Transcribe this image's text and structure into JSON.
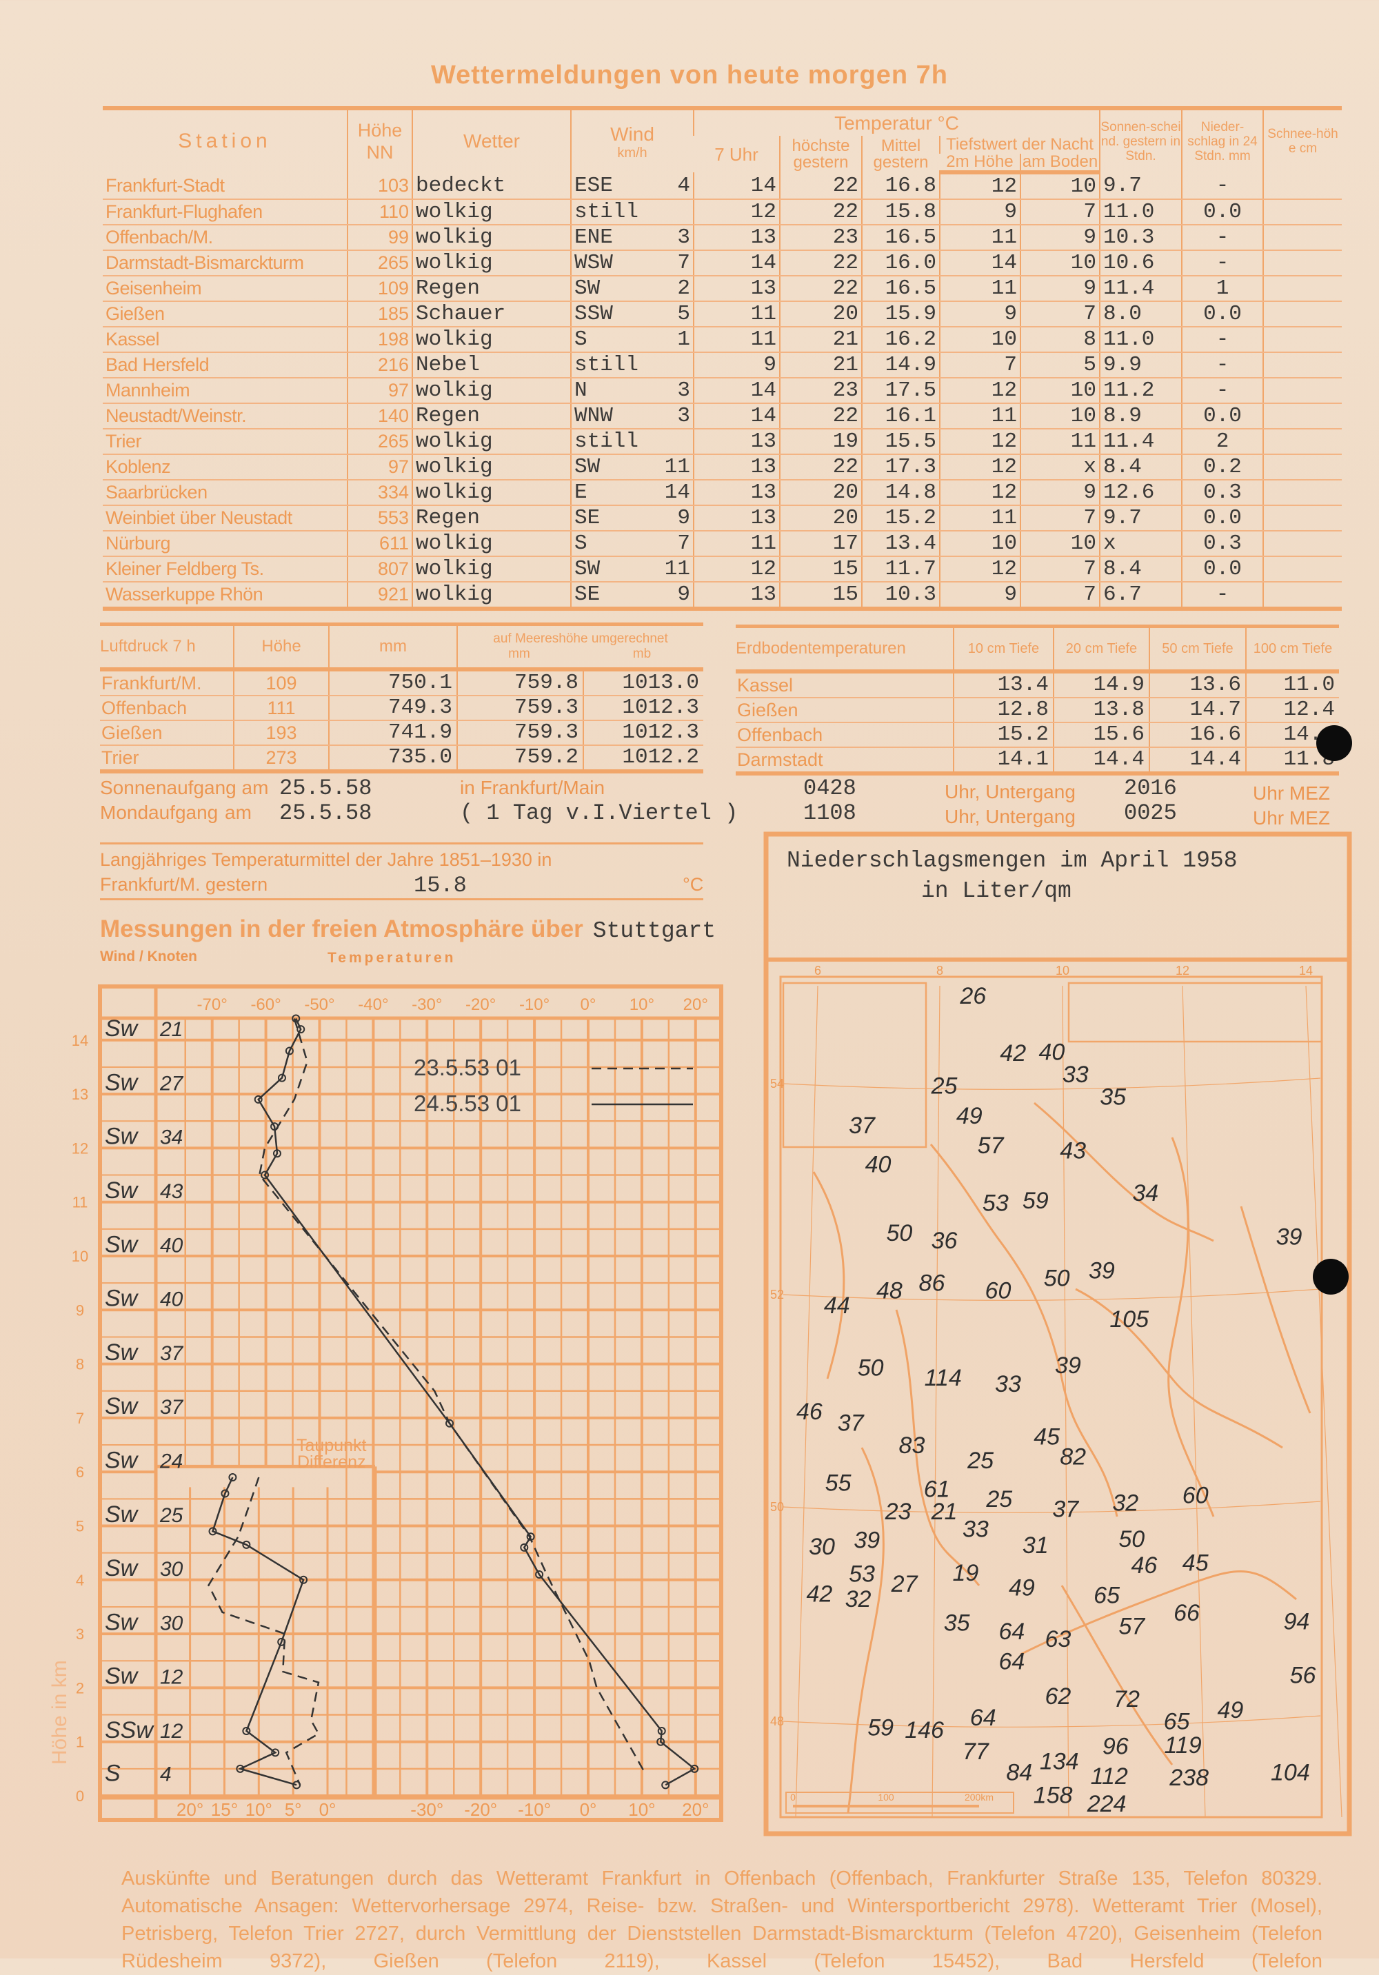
{
  "title": "Wettermeldungen von heute morgen 7h",
  "main_table": {
    "headers": {
      "station": "Station",
      "hoehe": "Höhe NN",
      "wetter": "Wetter",
      "wind": "Wind",
      "wind_unit": "km/h",
      "temperatur": "Temperatur °C",
      "t7": "7 Uhr",
      "tmax": "höchste gestern",
      "tmean": "Mittel gestern",
      "tmin": "Tiefstwert der Nacht",
      "tmin2m": "2m Höhe",
      "tminboden": "am Boden",
      "sonne": "Sonnen-scheind. gestern in Stdn.",
      "nieder": "Nieder-schlag in 24 Stdn. mm",
      "schnee": "Schnee-höhe cm"
    },
    "rows": [
      [
        "Frankfurt-Stadt",
        "103",
        "bedeckt",
        "ESE",
        "4",
        "14",
        "22",
        "16.8",
        "12",
        "10",
        "9.7",
        "-",
        ""
      ],
      [
        "Frankfurt-Flughafen",
        "110",
        "wolkig",
        "still",
        "",
        "12",
        "22",
        "15.8",
        "9",
        "7",
        "11.0",
        "0.0",
        ""
      ],
      [
        "Offenbach/M.",
        "99",
        "wolkig",
        "ENE",
        "3",
        "13",
        "23",
        "16.5",
        "11",
        "9",
        "10.3",
        "-",
        ""
      ],
      [
        "Darmstadt-Bismarckturm",
        "265",
        "wolkig",
        "WSW",
        "7",
        "14",
        "22",
        "16.0",
        "14",
        "10",
        "10.6",
        "-",
        ""
      ],
      [
        "Geisenheim",
        "109",
        "Regen",
        "SW",
        "2",
        "13",
        "22",
        "16.5",
        "11",
        "9",
        "11.4",
        "1",
        ""
      ],
      [
        "Gießen",
        "185",
        "Schauer",
        "SSW",
        "5",
        "11",
        "20",
        "15.9",
        "9",
        "7",
        "8.0",
        "0.0",
        ""
      ],
      [
        "Kassel",
        "198",
        "wolkig",
        "S",
        "1",
        "11",
        "21",
        "16.2",
        "10",
        "8",
        "11.0",
        "-",
        ""
      ],
      [
        "Bad Hersfeld",
        "216",
        "Nebel",
        "still",
        "",
        "9",
        "21",
        "14.9",
        "7",
        "5",
        "9.9",
        "-",
        ""
      ],
      [
        "Mannheim",
        "97",
        "wolkig",
        "N",
        "3",
        "14",
        "23",
        "17.5",
        "12",
        "10",
        "11.2",
        "-",
        ""
      ],
      [
        "Neustadt/Weinstr.",
        "140",
        "Regen",
        "WNW",
        "3",
        "14",
        "22",
        "16.1",
        "11",
        "10",
        "8.9",
        "0.0",
        ""
      ],
      [
        "Trier",
        "265",
        "wolkig",
        "still",
        "",
        "13",
        "19",
        "15.5",
        "12",
        "11",
        "11.4",
        "2",
        ""
      ],
      [
        "Koblenz",
        "97",
        "wolkig",
        "SW",
        "11",
        "13",
        "22",
        "17.3",
        "12",
        "x",
        "8.4",
        "0.2",
        ""
      ],
      [
        "Saarbrücken",
        "334",
        "wolkig",
        "E",
        "14",
        "13",
        "20",
        "14.8",
        "12",
        "9",
        "12.6",
        "0.3",
        ""
      ],
      [
        "Weinbiet über Neustadt",
        "553",
        "Regen",
        "SE",
        "9",
        "13",
        "20",
        "15.2",
        "11",
        "7",
        "9.7",
        "0.0",
        ""
      ],
      [
        "Nürburg",
        "611",
        "wolkig",
        "S",
        "7",
        "11",
        "17",
        "13.4",
        "10",
        "10",
        "x",
        "0.3",
        ""
      ],
      [
        "Kleiner Feldberg Ts.",
        "807",
        "wolkig",
        "SW",
        "11",
        "12",
        "15",
        "11.7",
        "12",
        "7",
        "8.4",
        "0.0",
        ""
      ],
      [
        "Wasserkuppe Rhön",
        "921",
        "wolkig",
        "SE",
        "9",
        "13",
        "15",
        "10.3",
        "9",
        "7",
        "6.7",
        "-",
        ""
      ]
    ]
  },
  "luftdruck": {
    "headers": {
      "station": "Luftdruck 7 h",
      "hoehe": "Höhe",
      "mm": "mm",
      "meer": "auf Meereshöhe umgerechnet",
      "meer_mm": "mm",
      "meer_mb": "mb"
    },
    "rows": [
      [
        "Frankfurt/M.",
        "109",
        "750.1",
        "759.8",
        "1013.0"
      ],
      [
        "Offenbach",
        "111",
        "749.3",
        "759.3",
        "1012.3"
      ],
      [
        "Gießen",
        "193",
        "741.9",
        "759.3",
        "1012.3"
      ],
      [
        "Trier",
        "273",
        "735.0",
        "759.2",
        "1012.2"
      ]
    ]
  },
  "erdboden": {
    "headers": [
      "Erdbodentemperaturen",
      "10 cm Tiefe",
      "20 cm Tiefe",
      "50 cm Tiefe",
      "100 cm Tiefe"
    ],
    "rows": [
      [
        "Kassel",
        "13.4",
        "14.9",
        "13.6",
        "11.0"
      ],
      [
        "Gießen",
        "12.8",
        "13.8",
        "14.7",
        "12.4"
      ],
      [
        "Offenbach",
        "15.2",
        "15.6",
        "16.6",
        "14.4"
      ],
      [
        "Darmstadt",
        "14.1",
        "14.4",
        "14.4",
        "11.8"
      ]
    ]
  },
  "sun_moon": {
    "sun_label": "Sonnenaufgang am",
    "sun_date": "25.5.58",
    "sun_place": "in Frankfurt/Main",
    "sun_rise": "0428",
    "untergang_label": "Uhr, Untergang",
    "sun_set": "2016",
    "mez": "Uhr MEZ",
    "moon_label": "Mondaufgang",
    "moon_am": "am",
    "moon_date": "25.5.58",
    "moon_note": "( 1 Tag v.I.Viertel )",
    "moon_rise": "1108",
    "moon_set": "0025"
  },
  "langjaehrig": {
    "line1": "Langjähriges Temperaturmittel der Jahre 1851–1930 in",
    "line2": "Frankfurt/M. gestern",
    "value": "15.8",
    "unit": "°C"
  },
  "atmosphere": {
    "title": "Messungen in der freien Atmosphäre über",
    "place": "Stuttgart",
    "wind_label": "Wind / Knoten",
    "temp_label": "Temperaturen",
    "dewpoint_label_1": "Taupunkt",
    "dewpoint_label_2": "Differenz",
    "height_label": "Höhe in km"
  },
  "chart_data": {
    "type": "line",
    "x_label": "Temperaturen",
    "y_label": "Höhe in km",
    "xlim": [
      -80,
      25
    ],
    "ylim": [
      0,
      14.5
    ],
    "x_ticks_top": [
      "-70°",
      "-60°",
      "-50°",
      "-40°",
      "-30°",
      "-20°",
      "-10°",
      "0°",
      "10°",
      "20°"
    ],
    "x_ticks_bottom": [
      "-30°",
      "-20°",
      "-10°",
      "0°",
      "10°",
      "20°"
    ],
    "y_ticks": [
      "0",
      "1",
      "2",
      "3",
      "4",
      "5",
      "6",
      "7",
      "8",
      "9",
      "10",
      "11",
      "12",
      "13",
      "14"
    ],
    "grid": true,
    "legend": "top-right",
    "series": [
      {
        "name": "23.5.53 01",
        "style": "dashed",
        "points": [
          [
            -54.7,
            14.4
          ],
          [
            -52.3,
            13.6
          ],
          [
            -54.7,
            12.9
          ],
          [
            -60.2,
            12.0
          ],
          [
            -61.2,
            11.5
          ],
          [
            -28.6,
            7.5
          ],
          [
            -25.8,
            6.9
          ],
          [
            -10.9,
            4.8
          ],
          [
            -7.7,
            4.1
          ],
          [
            0.2,
            2.5
          ],
          [
            1.6,
            2.0
          ],
          [
            10.7,
            0.4
          ]
        ]
      },
      {
        "name": "24.5.53 01",
        "style": "solid",
        "points": [
          [
            -54.4,
            14.4
          ],
          [
            -53.5,
            14.2
          ],
          [
            -55.6,
            13.8
          ],
          [
            -57,
            13.3
          ],
          [
            -61.4,
            12.9
          ],
          [
            -58.4,
            12.4
          ],
          [
            -57.9,
            11.9
          ],
          [
            -60.2,
            11.5
          ],
          [
            -25.8,
            6.9
          ],
          [
            -10.7,
            4.8
          ],
          [
            -11.9,
            4.6
          ],
          [
            -9.1,
            4.1
          ],
          [
            13.7,
            1.2
          ],
          [
            13.5,
            1.0
          ],
          [
            19.8,
            0.5
          ],
          [
            14.4,
            0.2
          ]
        ]
      }
    ],
    "dewpoint_difference": {
      "x_ticks": [
        "20°",
        "15°",
        "10°",
        "5°",
        "0°"
      ],
      "xlim": [
        25,
        -7
      ],
      "series": [
        {
          "name": "23.5.53 01",
          "style": "dashed",
          "points": [
            [
              10,
              5.9
            ],
            [
              11.6,
              5.3
            ],
            [
              13,
              4.8
            ],
            [
              17.3,
              3.9
            ],
            [
              15.3,
              3.4
            ],
            [
              6.2,
              3.0
            ],
            [
              6.5,
              2.3
            ],
            [
              1.3,
              2.1
            ],
            [
              2.4,
              1.4
            ],
            [
              1.3,
              1.15
            ],
            [
              6,
              0.8
            ],
            [
              4,
              0.2
            ]
          ]
        },
        {
          "name": "24.5.53 01",
          "style": "solid",
          "points": [
            [
              13.8,
              5.9
            ],
            [
              14.9,
              5.6
            ],
            [
              16.7,
              4.9
            ],
            [
              11.8,
              4.65
            ],
            [
              3.5,
              4.0
            ],
            [
              6.7,
              2.85
            ],
            [
              11.8,
              1.2
            ],
            [
              7.6,
              0.8
            ],
            [
              12.7,
              0.5
            ],
            [
              4.5,
              0.2
            ]
          ]
        }
      ]
    },
    "wind": [
      [
        "Sw",
        "21"
      ],
      [
        "Sw",
        "27"
      ],
      [
        "Sw",
        "34"
      ],
      [
        "Sw",
        "43"
      ],
      [
        "Sw",
        "40"
      ],
      [
        "Sw",
        "40"
      ],
      [
        "Sw",
        "37"
      ],
      [
        "Sw",
        "37"
      ],
      [
        "Sw",
        "24"
      ],
      [
        "Sw",
        "25"
      ],
      [
        "Sw",
        "30"
      ],
      [
        "Sw",
        "30"
      ],
      [
        "Sw",
        "12"
      ],
      [
        "SSw",
        "12"
      ],
      [
        "S",
        "4"
      ]
    ]
  },
  "map": {
    "title_1": "Niederschlagsmengen im April 1958",
    "title_2": "in Liter/qm",
    "lon_ticks": [
      "6",
      "8",
      "10",
      "12",
      "14"
    ],
    "lat_ticks": [
      "54",
      "52",
      "50",
      "48"
    ],
    "scale": [
      "0",
      "100",
      "200km"
    ],
    "values": [
      "26",
      "42",
      "40",
      "33",
      "35",
      "25",
      "49",
      "37",
      "57",
      "43",
      "40",
      "34",
      "53",
      "59",
      "39",
      "50",
      "36",
      "50",
      "39",
      "48",
      "86",
      "60",
      "44",
      "105",
      "39",
      "50",
      "114",
      "33",
      "46",
      "37",
      "83",
      "25",
      "45",
      "82",
      "55",
      "61",
      "23",
      "21",
      "25",
      "33",
      "37",
      "32",
      "60",
      "30",
      "39",
      "31",
      "50",
      "46",
      "45",
      "53",
      "27",
      "42",
      "32",
      "19",
      "49",
      "65",
      "35",
      "64",
      "63",
      "57",
      "66",
      "94",
      "64",
      "56",
      "62",
      "72",
      "65",
      "49",
      "59",
      "146",
      "64",
      "77",
      "134",
      "96",
      "119",
      "84",
      "112",
      "238",
      "104",
      "158",
      "224"
    ]
  },
  "footer": [
    "Auskünfte und Beratungen durch das Wetteramt Frankfurt in Offenbach (Offenbach, Frankfurter Straße 135, Telefon 80329.",
    "Automatische Ansagen: Wettervorhersage 2974, Reise- bzw. Straßen- und Wintersportbericht 2978). Wetteramt Trier (Mosel),",
    "Petrisberg, Telefon Trier 2727, durch Vermittlung der Dienststellen Darmstadt-Bismarckturm (Telefon 4720), Geisenheim (Telefon",
    "Rüdesheim 9372), Gießen (Telefon 2119), Kassel (Telefon 15452), Bad Hersfeld (Telefon"
  ],
  "colors": {
    "paper": "#f0dcc8",
    "print_orange": "#ee9a55",
    "grid_orange": "#f1a66a",
    "ink": "#3c3a38"
  }
}
